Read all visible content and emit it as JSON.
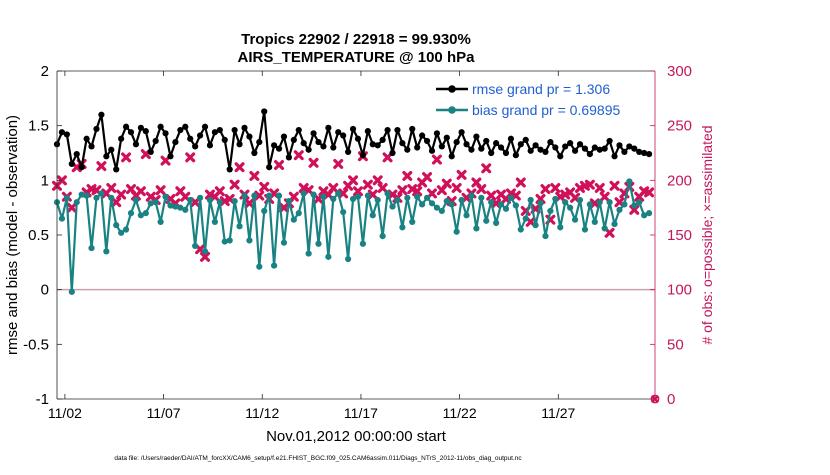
{
  "chart_data": {
    "type": "line",
    "title": "Tropics 22902 / 22918 = 99.930%",
    "subtitle": "AIRS_TEMPERATURE @ 100 hPa",
    "xlabel": "Nov.01,2012 00:00:00 start",
    "ylabel_left": "rmse and bias (model - observation)",
    "ylabel_right": "# of obs: o=possible; ×=assimilated",
    "footnote": "data file: /Users/raeder/DAI/ATM_forcXX/CAM6_setup/f.e21.FHIST_BGC.f09_025.CAM6assim.011/Diags_NTrS_2012-11/obs_diag_output.nc",
    "xlim": [
      0.6,
      30.9
    ],
    "ylim_left": [
      -1,
      2
    ],
    "ylim_right": [
      0,
      300
    ],
    "xticks": [
      {
        "value": 1,
        "label": "11/02"
      },
      {
        "value": 6,
        "label": "11/07"
      },
      {
        "value": 11,
        "label": "11/12"
      },
      {
        "value": 16,
        "label": "11/17"
      },
      {
        "value": 21,
        "label": "11/22"
      },
      {
        "value": 26,
        "label": "11/27"
      }
    ],
    "yticks_left": [
      {
        "value": -1,
        "label": "-1"
      },
      {
        "value": -0.5,
        "label": "-0.5"
      },
      {
        "value": 0,
        "label": "0"
      },
      {
        "value": 0.5,
        "label": "0.5"
      },
      {
        "value": 1,
        "label": "1"
      },
      {
        "value": 1.5,
        "label": "1.5"
      },
      {
        "value": 2,
        "label": "2"
      }
    ],
    "yticks_right": [
      {
        "value": 0,
        "label": "0"
      },
      {
        "value": 50,
        "label": "50"
      },
      {
        "value": 100,
        "label": "100"
      },
      {
        "value": 150,
        "label": "150"
      },
      {
        "value": 200,
        "label": "200"
      },
      {
        "value": 250,
        "label": "250"
      },
      {
        "value": 300,
        "label": "300"
      }
    ],
    "zero_line": 0,
    "legend_position": "top-right",
    "colors": {
      "rmse": "#000000",
      "bias": "#1a8282",
      "obs": "#d1105a",
      "axis_right": "#c2185b",
      "legend_text": "#1f5fd1",
      "zero_line": "#c8a0a6"
    },
    "x": [
      0.6,
      0.85,
      1.1,
      1.35,
      1.6,
      1.85,
      2.1,
      2.35,
      2.6,
      2.85,
      3.1,
      3.35,
      3.6,
      3.85,
      4.1,
      4.35,
      4.6,
      4.85,
      5.1,
      5.35,
      5.6,
      5.85,
      6.1,
      6.35,
      6.6,
      6.85,
      7.1,
      7.35,
      7.6,
      7.85,
      8.1,
      8.35,
      8.6,
      8.85,
      9.1,
      9.35,
      9.6,
      9.85,
      10.1,
      10.35,
      10.6,
      10.85,
      11.1,
      11.35,
      11.6,
      11.85,
      12.1,
      12.35,
      12.6,
      12.85,
      13.1,
      13.35,
      13.6,
      13.85,
      14.1,
      14.35,
      14.6,
      14.85,
      15.1,
      15.35,
      15.6,
      15.85,
      16.1,
      16.35,
      16.6,
      16.85,
      17.1,
      17.35,
      17.6,
      17.85,
      18.1,
      18.35,
      18.6,
      18.85,
      19.1,
      19.35,
      19.6,
      19.85,
      20.1,
      20.35,
      20.6,
      20.85,
      21.1,
      21.35,
      21.6,
      21.85,
      22.1,
      22.35,
      22.6,
      22.85,
      23.1,
      23.35,
      23.6,
      23.85,
      24.1,
      24.35,
      24.6,
      24.85,
      25.1,
      25.35,
      25.6,
      25.85,
      26.1,
      26.35,
      26.6,
      26.85,
      27.1,
      27.35,
      27.6,
      27.85,
      28.1,
      28.35,
      28.6,
      28.85,
      29.1,
      29.35,
      29.6,
      29.85,
      30.1,
      30.35,
      30.6
    ],
    "series": [
      {
        "name": "rmse grand pr = 1.306",
        "key": "rmse",
        "marker": "dot",
        "values": [
          1.33,
          1.44,
          1.42,
          1.15,
          1.24,
          1.12,
          1.38,
          1.31,
          1.47,
          1.6,
          1.22,
          1.28,
          1.1,
          1.38,
          1.49,
          1.44,
          1.33,
          1.48,
          1.45,
          1.26,
          1.36,
          1.49,
          1.43,
          1.22,
          1.35,
          1.46,
          1.49,
          1.38,
          1.31,
          1.41,
          1.49,
          1.32,
          1.44,
          1.46,
          1.37,
          1.1,
          1.46,
          1.33,
          1.48,
          1.4,
          1.25,
          1.35,
          1.63,
          1.12,
          1.32,
          1.29,
          1.4,
          1.21,
          1.37,
          1.46,
          1.34,
          1.28,
          1.43,
          1.35,
          1.31,
          1.48,
          1.3,
          1.44,
          1.41,
          1.26,
          1.47,
          1.38,
          1.23,
          1.45,
          1.33,
          1.32,
          1.37,
          1.46,
          1.25,
          1.46,
          1.34,
          1.28,
          1.47,
          1.3,
          1.41,
          1.36,
          1.27,
          1.43,
          1.31,
          1.39,
          1.22,
          1.35,
          1.44,
          1.33,
          1.28,
          1.4,
          1.29,
          1.36,
          1.25,
          1.34,
          1.3,
          1.25,
          1.38,
          1.23,
          1.33,
          1.37,
          1.27,
          1.32,
          1.28,
          1.26,
          1.35,
          1.3,
          1.22,
          1.31,
          1.34,
          1.27,
          1.33,
          1.29,
          1.24,
          1.3,
          1.28,
          1.29,
          1.36,
          1.22,
          1.32,
          1.26,
          1.31,
          1.29,
          1.26,
          1.25,
          1.24
        ]
      },
      {
        "name": "bias grand pr = 0.69895",
        "key": "bias",
        "marker": "dot",
        "values": [
          0.8,
          0.65,
          0.84,
          -0.02,
          0.8,
          0.87,
          0.86,
          0.38,
          0.84,
          0.88,
          0.35,
          0.84,
          0.59,
          0.52,
          0.55,
          0.7,
          0.82,
          0.68,
          0.7,
          0.79,
          0.8,
          0.62,
          0.85,
          0.77,
          0.76,
          0.75,
          0.73,
          0.82,
          0.4,
          0.84,
          0.35,
          0.82,
          0.62,
          0.8,
          0.44,
          0.45,
          0.81,
          0.58,
          0.86,
          0.45,
          0.86,
          0.21,
          0.72,
          0.86,
          0.22,
          0.86,
          0.43,
          0.81,
          0.64,
          0.7,
          0.88,
          0.33,
          0.87,
          0.42,
          0.85,
          0.3,
          0.83,
          0.88,
          0.71,
          0.28,
          0.83,
          0.85,
          0.42,
          0.86,
          0.68,
          0.82,
          0.49,
          0.88,
          0.76,
          0.82,
          0.57,
          0.84,
          0.62,
          0.85,
          0.78,
          0.84,
          0.79,
          0.75,
          0.72,
          0.81,
          0.78,
          0.53,
          0.82,
          0.68,
          0.86,
          0.56,
          0.84,
          0.63,
          0.8,
          0.61,
          0.78,
          0.74,
          0.84,
          0.77,
          0.55,
          0.65,
          0.82,
          0.59,
          0.79,
          0.49,
          0.72,
          0.83,
          0.57,
          0.8,
          0.75,
          0.64,
          0.82,
          0.55,
          0.78,
          0.62,
          0.8,
          0.56,
          0.8,
          0.6,
          0.73,
          0.78,
          0.99,
          0.77,
          0.8,
          0.68,
          0.7
        ]
      },
      {
        "name": "obs assimilated",
        "key": "obs",
        "marker": "x",
        "axis": "right",
        "values": [
          195,
          200,
          185,
          175,
          212,
          215,
          189,
          192,
          191,
          213,
          188,
          193,
          180,
          187,
          221,
          192,
          186,
          190,
          224,
          185,
          182,
          191,
          218,
          183,
          179,
          190,
          185,
          221,
          180,
          137,
          130,
          187,
          185,
          190,
          181,
          183,
          196,
          212,
          187,
          179,
          204,
          186,
          194,
          183,
          188,
          214,
          175,
          179,
          185,
          223,
          193,
          191,
          216,
          183,
          190,
          187,
          193,
          215,
          188,
          195,
          200,
          190,
          222,
          196,
          187,
          200,
          193,
          221,
          187,
          184,
          191,
          204,
          192,
          190,
          198,
          203,
          188,
          219,
          191,
          197,
          181,
          193,
          205,
          184,
          188,
          198,
          192,
          211,
          186,
          179,
          187,
          183,
          188,
          186,
          198,
          172,
          162,
          174,
          183,
          192,
          164,
          193,
          185,
          187,
          189,
          184,
          193,
          195,
          196,
          179,
          193,
          185,
          152,
          195,
          180,
          188,
          194,
          173,
          185,
          190,
          189
        ]
      }
    ],
    "obs_possible_marker": {
      "x": 30.9,
      "value": 0
    }
  }
}
